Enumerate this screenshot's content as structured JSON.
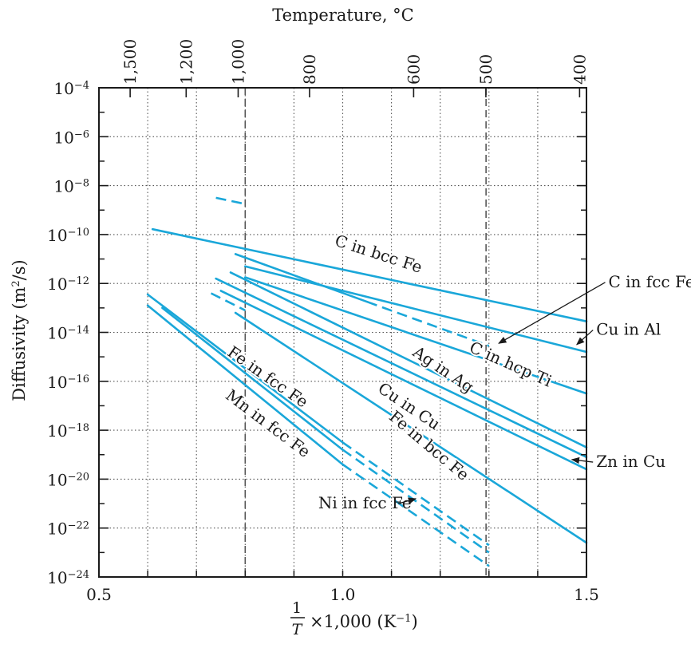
{
  "chart_data": {
    "type": "line",
    "title": "",
    "xlabel": {
      "fraction_num": "1",
      "fraction_den": "T",
      "rest": "×1,000 (K",
      "sup": "−1",
      "close": ")"
    },
    "ylabel": {
      "main": "Diffusivity (m",
      "sup": "2",
      "tail": "/s)"
    },
    "top_axis_label": "Temperature, °C",
    "xlim": [
      0.5,
      1.5
    ],
    "ylim_log10": [
      -24,
      -4
    ],
    "y_scale": "log",
    "grid": "dotted",
    "x_ticks": [
      {
        "value": 0.5,
        "label": "0.5"
      },
      {
        "value": 1.0,
        "label": "1.0"
      },
      {
        "value": 1.5,
        "label": "1.5"
      }
    ],
    "y_ticks": [
      {
        "exp": -4,
        "base": "10",
        "sup": "−4"
      },
      {
        "exp": -6,
        "base": "10",
        "sup": "−6"
      },
      {
        "exp": -8,
        "base": "10",
        "sup": "−8"
      },
      {
        "exp": -10,
        "base": "10",
        "sup": "−10"
      },
      {
        "exp": -12,
        "base": "10",
        "sup": "−12"
      },
      {
        "exp": -14,
        "base": "10",
        "sup": "−14"
      },
      {
        "exp": -16,
        "base": "10",
        "sup": "−16"
      },
      {
        "exp": -18,
        "base": "10",
        "sup": "−18"
      },
      {
        "exp": -20,
        "base": "10",
        "sup": "−20"
      },
      {
        "exp": -22,
        "base": "10",
        "sup": "−22"
      },
      {
        "exp": -24,
        "base": "10",
        "sup": "−24"
      }
    ],
    "top_ticks": [
      {
        "temp_c": 1500,
        "label": "1,500"
      },
      {
        "temp_c": 1200,
        "label": "1,200"
      },
      {
        "temp_c": 1000,
        "label": "1,000"
      },
      {
        "temp_c": 800,
        "label": "800"
      },
      {
        "temp_c": 600,
        "label": "600"
      },
      {
        "temp_c": 500,
        "label": "500"
      },
      {
        "temp_c": 400,
        "label": "400"
      }
    ],
    "reference_lines_x": [
      0.8,
      1.294
    ],
    "colors": {
      "series": "#1aa7d9",
      "axis": "#1a1a1a",
      "grid": "#555555",
      "reference": "#555555"
    },
    "series": [
      {
        "name": "C in bcc Fe",
        "points": [
          [
            0.61,
            -9.78
          ],
          [
            1.5,
            -13.55
          ]
        ],
        "dashed_points": []
      },
      {
        "name": "C in fcc Fe",
        "points": [
          [
            0.78,
            -10.8
          ],
          [
            1.05,
            -12.75
          ]
        ],
        "dashed_points": [
          [
            1.05,
            -12.75
          ],
          [
            1.3,
            -14.55
          ]
        ]
      },
      {
        "name": "Cu in Al",
        "points": [
          [
            0.8,
            -11.3
          ],
          [
            1.5,
            -14.8
          ]
        ],
        "dashed_points": [
          [
            0.74,
            -8.5
          ],
          [
            0.8,
            -8.75
          ]
        ]
      },
      {
        "name": "C in hcp Ti",
        "points": [
          [
            0.8,
            -11.75
          ],
          [
            1.5,
            -16.5
          ]
        ],
        "dashed_points": [
          [
            0.73,
            -12.4
          ],
          [
            0.8,
            -13.1
          ]
        ]
      },
      {
        "name": "Ag in Ag",
        "points": [
          [
            0.74,
            -11.8
          ],
          [
            1.5,
            -19.1
          ]
        ],
        "dashed_points": []
      },
      {
        "name": "Zn in Cu",
        "points": [
          [
            0.77,
            -11.55
          ],
          [
            1.5,
            -18.7
          ]
        ],
        "dashed_points": []
      },
      {
        "name": "Cu in Cu",
        "points": [
          [
            0.75,
            -12.3
          ],
          [
            1.5,
            -19.6
          ]
        ],
        "dashed_points": []
      },
      {
        "name": "Fe in bcc Fe",
        "points": [
          [
            0.78,
            -13.2
          ],
          [
            1.5,
            -22.6
          ]
        ],
        "dashed_points": []
      },
      {
        "name": "Fe in fcc Fe",
        "points": [
          [
            0.6,
            -12.45
          ],
          [
            1.0,
            -18.5
          ]
        ],
        "dashed_points": [
          [
            1.0,
            -18.5
          ],
          [
            1.3,
            -22.7
          ]
        ]
      },
      {
        "name": "Mn in fcc Fe",
        "points": [
          [
            0.63,
            -13.0
          ],
          [
            1.0,
            -18.8
          ]
        ],
        "dashed_points": [
          [
            1.0,
            -18.8
          ],
          [
            1.3,
            -23.0
          ]
        ]
      },
      {
        "name": "Ni in fcc Fe",
        "points": [
          [
            0.6,
            -12.9
          ],
          [
            1.0,
            -19.4
          ]
        ],
        "dashed_points": [
          [
            1.0,
            -19.4
          ],
          [
            1.3,
            -23.55
          ]
        ]
      }
    ],
    "annotations": [
      {
        "text": "C in bcc Fe",
        "x": 1.07,
        "y": -11.0,
        "angle": 18,
        "arrow": false
      },
      {
        "text": "C in hcp Ti",
        "x": 1.34,
        "y": -15.5,
        "angle": 24,
        "arrow": false
      },
      {
        "text": "Ag in Ag",
        "x": 1.2,
        "y": -15.7,
        "angle": 34,
        "arrow": false
      },
      {
        "text": "Cu in Cu",
        "x": 1.13,
        "y": -17.2,
        "angle": 34,
        "arrow": false
      },
      {
        "text": "Fe in bcc Fe",
        "x": 1.17,
        "y": -18.8,
        "angle": 40,
        "arrow": false
      },
      {
        "text": "Fe in fcc Fe",
        "x": 0.84,
        "y": -16.0,
        "angle": 35,
        "arrow": false
      },
      {
        "text": "Mn in fcc Fe",
        "x": 0.84,
        "y": -17.9,
        "angle": 37,
        "arrow": false
      },
      {
        "text": "C in fcc Fe",
        "x": 1.545,
        "y": -12.15,
        "angle": 0,
        "arrow": true,
        "arrow_to": [
          1.32,
          -14.45
        ]
      },
      {
        "text": "Cu in Al",
        "x": 1.52,
        "y": -14.1,
        "angle": 0,
        "arrow": true,
        "arrow_to": [
          1.48,
          -14.5
        ]
      },
      {
        "text": "Zn in Cu",
        "x": 1.52,
        "y": -19.5,
        "angle": 0,
        "arrow": true,
        "arrow_to": [
          1.47,
          -19.2
        ]
      },
      {
        "text": "Ni in fcc Fe",
        "x": 0.95,
        "y": -21.2,
        "angle": 0,
        "arrow": true,
        "arrow_to": [
          1.15,
          -20.8
        ]
      }
    ]
  }
}
